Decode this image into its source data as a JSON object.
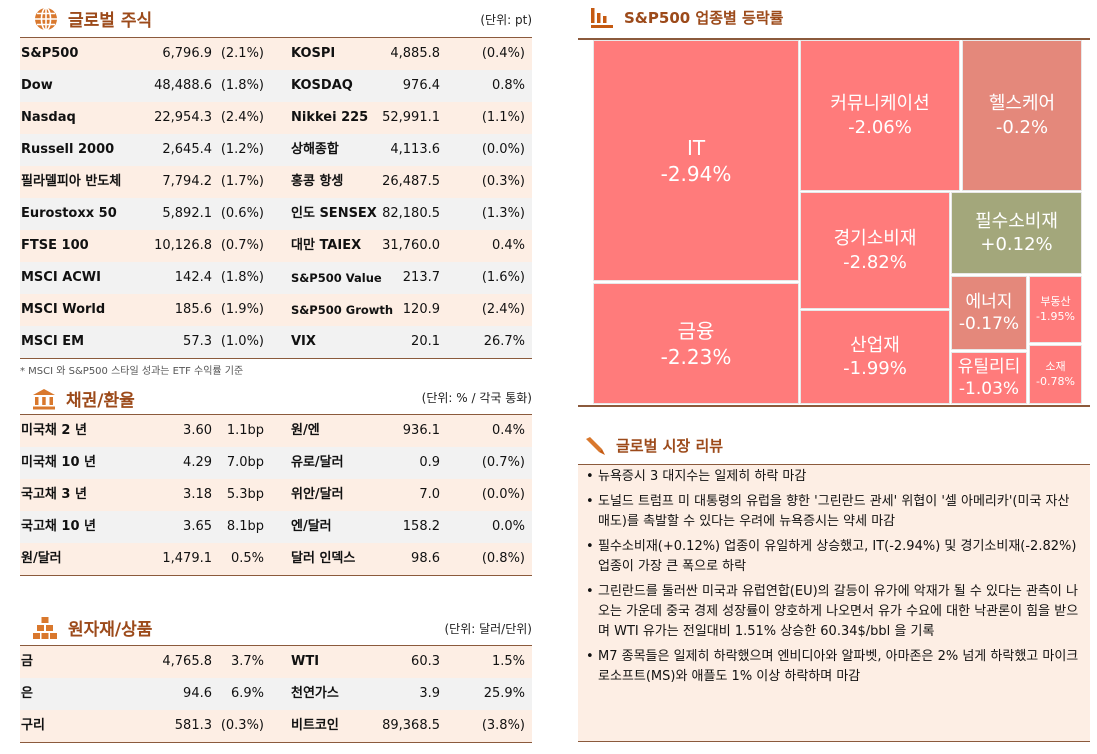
{
  "equities": {
    "title": "글로벌 주식",
    "unit": "(단위: pt)",
    "icon": "globe-icon",
    "rows": [
      [
        "S&P500",
        "6,796.9",
        "(2.1%)",
        "KOSPI",
        "4,885.8",
        "(0.4%)"
      ],
      [
        "Dow",
        "48,488.6",
        "(1.8%)",
        "KOSDAQ",
        "976.4",
        "0.8%"
      ],
      [
        "Nasdaq",
        "22,954.3",
        "(2.4%)",
        "Nikkei 225",
        "52,991.1",
        "(1.1%)"
      ],
      [
        "Russell 2000",
        "2,645.4",
        "(1.2%)",
        "상해종합",
        "4,113.6",
        "(0.0%)"
      ],
      [
        "필라델피아 반도체",
        "7,794.2",
        "(1.7%)",
        "홍콩 항셍",
        "26,487.5",
        "(0.3%)"
      ],
      [
        "Eurostoxx 50",
        "5,892.1",
        "(0.6%)",
        "인도 SENSEX",
        "82,180.5",
        "(1.3%)"
      ],
      [
        "FTSE 100",
        "10,126.8",
        "(0.7%)",
        "대만 TAIEX",
        "31,760.0",
        "0.4%"
      ],
      [
        "MSCI ACWI",
        "142.4",
        "(1.8%)",
        "S&P500 Value",
        "213.7",
        "(1.6%)"
      ],
      [
        "MSCI World",
        "185.6",
        "(1.9%)",
        "S&P500 Growth",
        "120.9",
        "(2.4%)"
      ],
      [
        "MSCI EM",
        "57.3",
        "(1.0%)",
        "VIX",
        "20.1",
        "26.7%"
      ]
    ],
    "note": "* MSCI 와 S&P500 스타일 성과는 ETF 수익률 기준"
  },
  "bonds": {
    "title": "채권/환율",
    "unit": "(단위: % / 각국 통화)",
    "icon": "bank-icon",
    "rows": [
      [
        "미국채 2 년",
        "3.60",
        "1.1bp",
        "원/엔",
        "936.1",
        "0.4%"
      ],
      [
        "미국채 10 년",
        "4.29",
        "7.0bp",
        "유로/달러",
        "0.9",
        "(0.7%)"
      ],
      [
        "국고채 3 년",
        "3.18",
        "5.3bp",
        "위안/달러",
        "7.0",
        "(0.0%)"
      ],
      [
        "국고채 10 년",
        "3.65",
        "8.1bp",
        "엔/달러",
        "158.2",
        "0.0%"
      ],
      [
        "원/달러",
        "1,479.1",
        "0.5%",
        "달러 인덱스",
        "98.6",
        "(0.8%)"
      ]
    ]
  },
  "commodities": {
    "title": "원자재/상품",
    "unit": "(단위: 달러/단위)",
    "icon": "gold-bars-icon",
    "rows": [
      [
        "금",
        "4,765.8",
        "3.7%",
        "WTI",
        "60.3",
        "1.5%"
      ],
      [
        "은",
        "94.6",
        "6.9%",
        "천연가스",
        "3.9",
        "25.9%"
      ],
      [
        "구리",
        "581.3",
        "(0.3%)",
        "비트코인",
        "89,368.5",
        "(3.8%)"
      ]
    ]
  },
  "sectors": {
    "title": "S&P500 업종별 등락률",
    "icon": "bar-chart-icon",
    "colors": {
      "down": "#FF7B7B",
      "slight_down": "#E4887B",
      "up": "#A3A77B"
    },
    "items": [
      {
        "name": "IT",
        "change": "-2.94%"
      },
      {
        "name": "금융",
        "change": "-2.23%"
      },
      {
        "name": "커뮤니케이션",
        "change": "-2.06%"
      },
      {
        "name": "헬스케어",
        "change": "-0.2%"
      },
      {
        "name": "경기소비재",
        "change": "-2.82%"
      },
      {
        "name": "산업재",
        "change": "-1.99%"
      },
      {
        "name": "필수소비재",
        "change": "+0.12%"
      },
      {
        "name": "에너지",
        "change": "-0.17%"
      },
      {
        "name": "유틸리티",
        "change": "-1.03%"
      },
      {
        "name": "부동산",
        "change": "-1.95%"
      },
      {
        "name": "소재",
        "change": "-0.78%"
      }
    ]
  },
  "review": {
    "title": "글로벌 시장 리뷰",
    "icon": "pen-icon",
    "items": [
      "뉴욕증시 3 대지수는 일제히 하락 마감",
      "도널드 트럼프 미 대통령의 유럽을 향한 '그린란드 관세' 위협이 '셀 아메리카'(미국 자산 매도)를 촉발할 수 있다는 우려에 뉴욕증시는 약세 마감",
      "필수소비재(+0.12%) 업종이 유일하게 상승했고, IT(-2.94%) 및 경기소비재(-2.82%) 업종이 가장 큰 폭으로 하락",
      "그린란드를 둘러싼 미국과 유럽연합(EU)의 갈등이 유가에 악재가 될 수 있다는 관측이 나오는 가운데 중국 경제 성장률이 양호하게 나오면서 유가 수요에 대한 낙관론이 힘을 받으며 WTI 유가는 전일대비 1.51% 상승한 60.34$/bbl 을 기록",
      "M7 종목들은 일제히 하락했으며 엔비디아와 알파벳, 아마존은 2% 넘게 하락했고 마이크로소프트(MS)와 애플도 1% 이상 하락하며 마감"
    ]
  }
}
